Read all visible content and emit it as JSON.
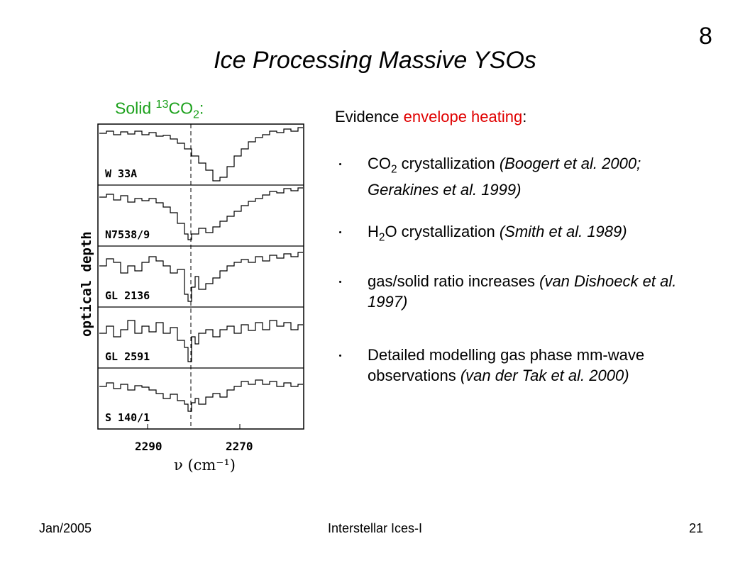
{
  "slide_number": "8",
  "title": "Ice Processing Massive YSOs",
  "figure": {
    "label_main": "Solid ",
    "label_sup": "13",
    "label_co": "CO",
    "label_sub": "2",
    "label_end": ":",
    "ylabel": "optical depth",
    "xlabel": "ν (cm⁻¹)",
    "x_ticks": [
      "2290",
      "2270"
    ],
    "panels": [
      "W 33A",
      "N7538/9",
      "GL 2136",
      "GL 2591",
      "S 140/1"
    ]
  },
  "evidence": {
    "prefix": "Evidence ",
    "highlight": "envelope heating",
    "suffix": ":",
    "highlight_color": "#e00000"
  },
  "bullets": [
    {
      "pre": "CO",
      "sub": "2",
      "text": " crystallization ",
      "ref": "(Boogert et al. 2000; Gerakines et al. 1999)"
    },
    {
      "pre": "H",
      "sub": "2",
      "text": "O crystallization ",
      "ref": "(Smith et al. 1989)"
    },
    {
      "pre": "",
      "sub": "",
      "text": "gas/solid ratio increases  ",
      "ref": "(van Dishoeck et al. 1997)"
    },
    {
      "pre": "",
      "sub": "",
      "text": "Detailed modelling gas phase mm-wave observations ",
      "ref": "(van der Tak et al. 2000)"
    }
  ],
  "footer": {
    "left": "Jan/2005",
    "center": "Interstellar Ices-I",
    "right": "21"
  },
  "label_color": "#1aa01a"
}
